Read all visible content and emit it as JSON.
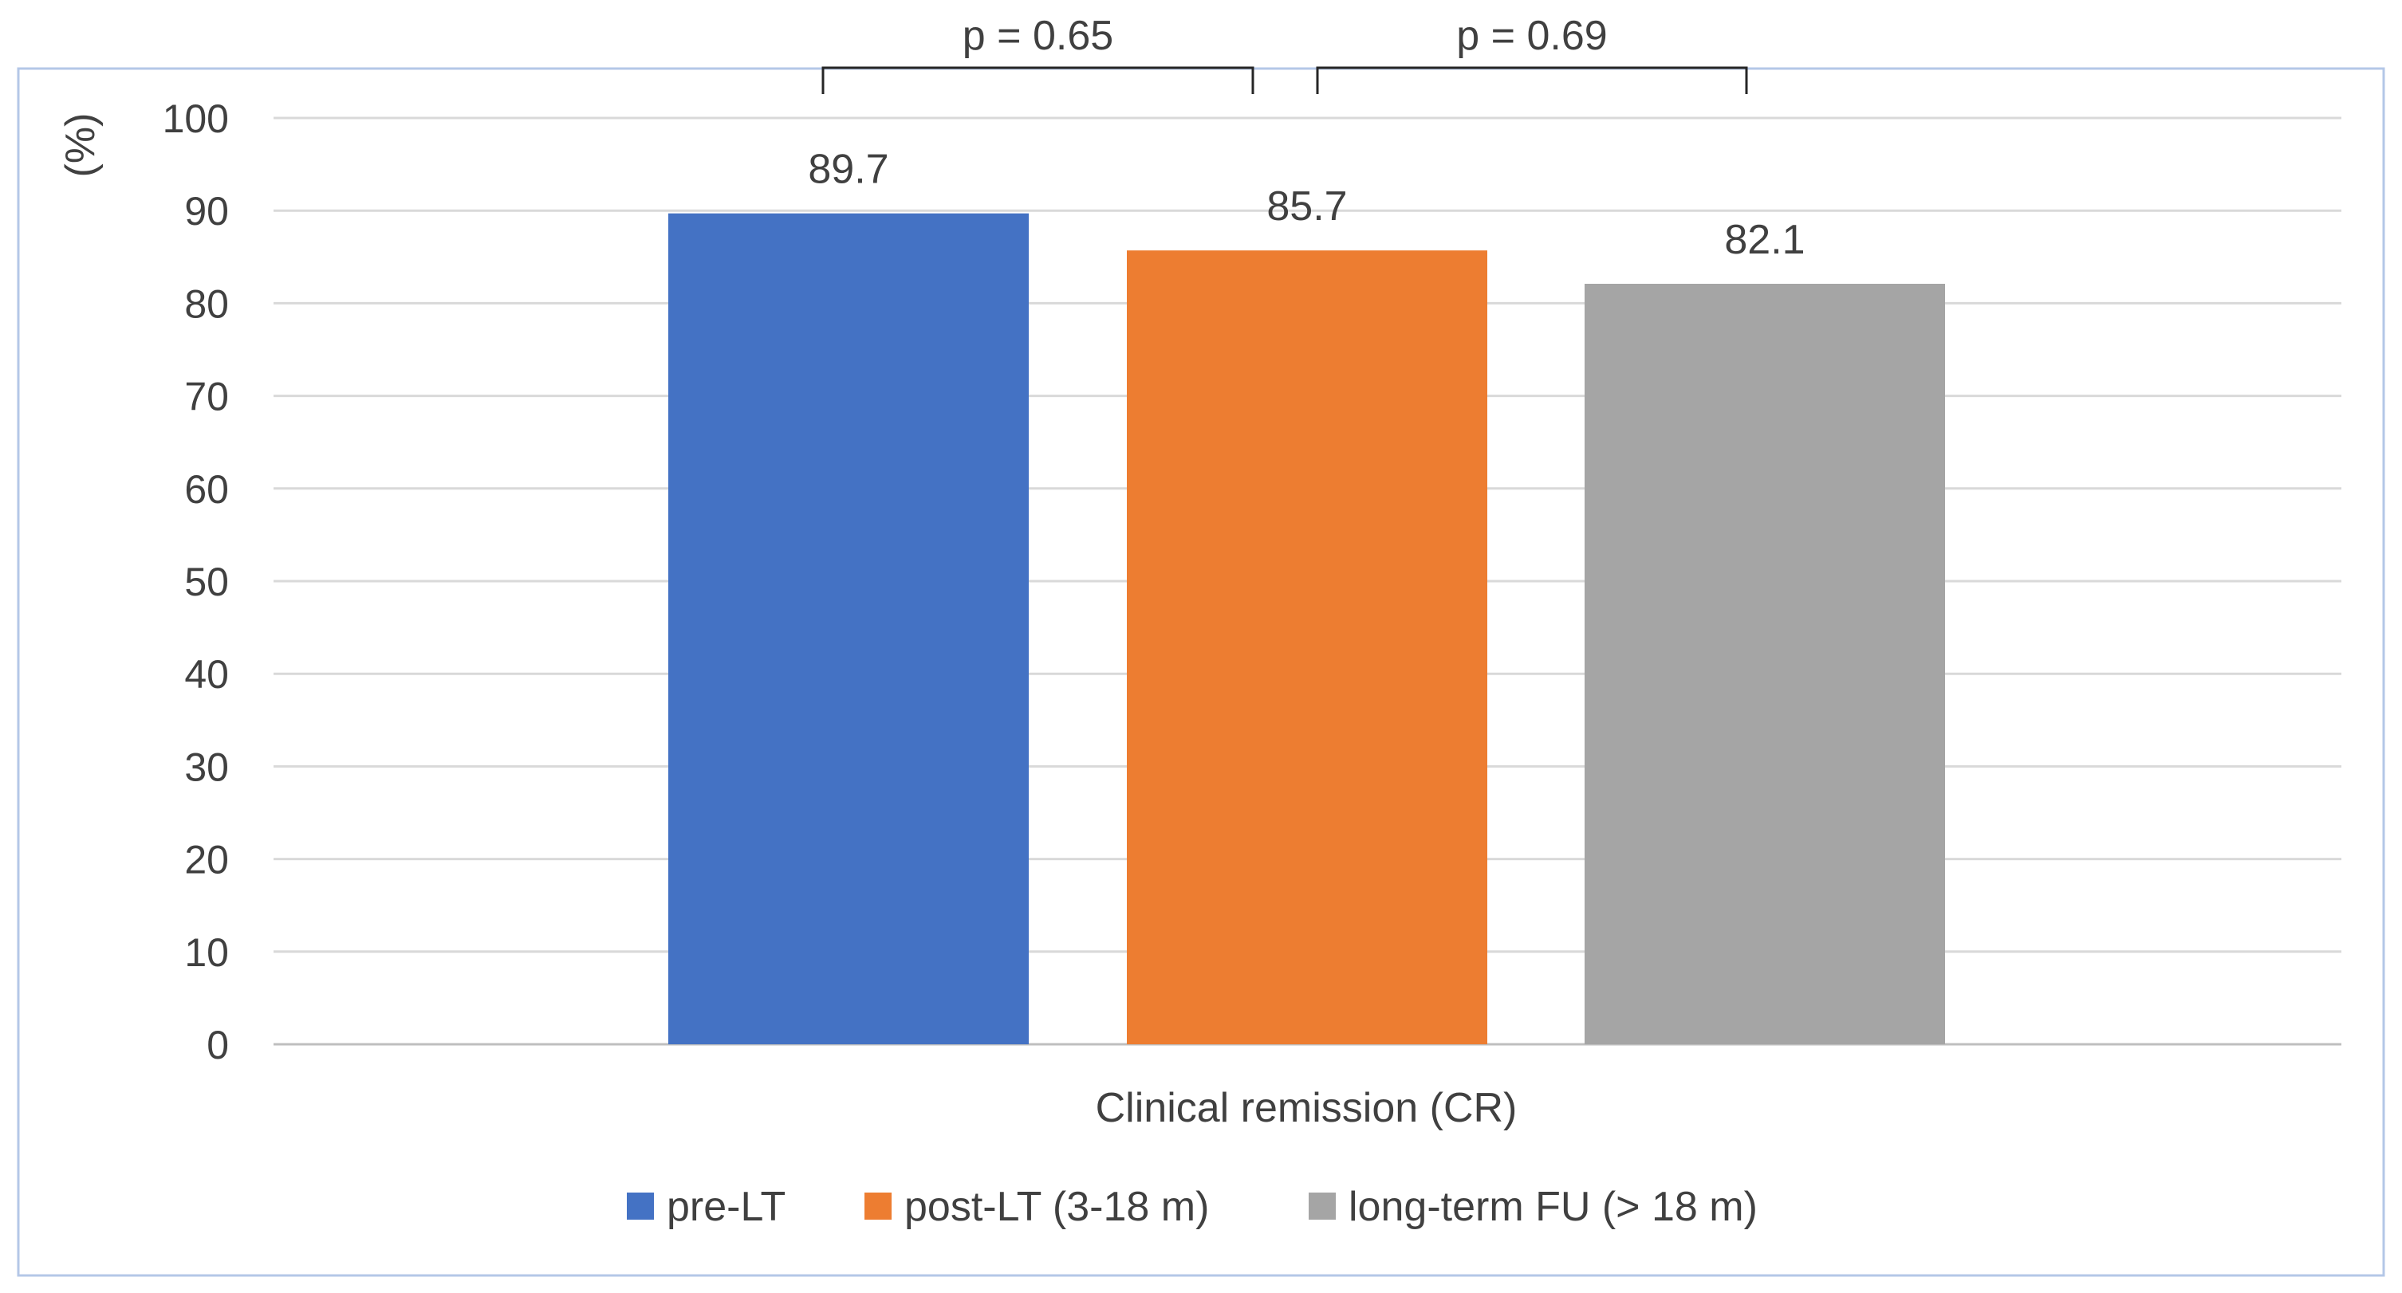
{
  "chart_data": {
    "type": "bar",
    "title": "",
    "categories": [
      "Clinical remission (CR)"
    ],
    "series": [
      {
        "name": "pre-LT",
        "values": [
          89.7
        ],
        "color": "#4472C4"
      },
      {
        "name": "post-LT (3-18 m)",
        "values": [
          85.7
        ],
        "color": "#ED7D31"
      },
      {
        "name": "long-term FU (> 18 m)",
        "values": [
          82.1
        ],
        "color": "#A5A5A5"
      }
    ],
    "data_labels": [
      "89.7",
      "85.7",
      "82.1"
    ],
    "xlabel": "Clinical remission (CR)",
    "ylabel": "(%)",
    "ylim": [
      0,
      100
    ],
    "yticks": [
      0,
      10,
      20,
      30,
      40,
      50,
      60,
      70,
      80,
      90,
      100
    ],
    "ytick_labels": [
      "0",
      "10",
      "20",
      "30",
      "40",
      "50",
      "60",
      "70",
      "80",
      "90",
      "100"
    ],
    "grid": true,
    "legend_position": "bottom",
    "annotations": [
      {
        "text": "p = 0.65",
        "from_series": 0,
        "to_series": 1
      },
      {
        "text": "p = 0.69",
        "from_series": 1,
        "to_series": 2
      }
    ],
    "colors": {
      "grid": "#D9D9D9",
      "axis": "#BFBFBF",
      "text": "#404040",
      "border": "#B4C7E7"
    }
  }
}
